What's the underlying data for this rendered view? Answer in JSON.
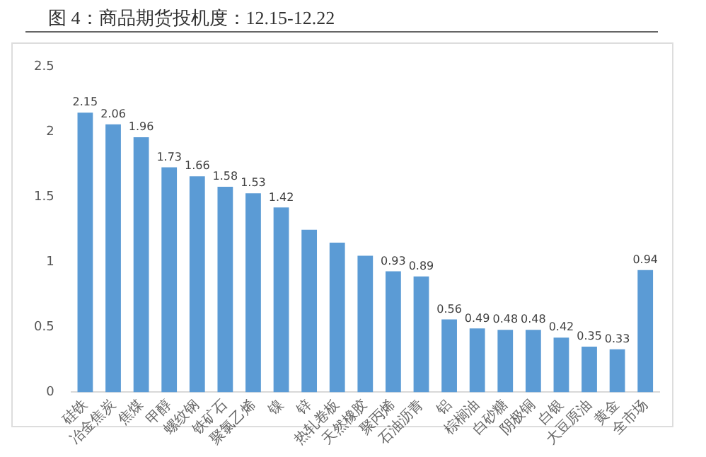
{
  "chart_data": {
    "type": "bar",
    "title": "图 4：商品期货投机度：12.15-12.22",
    "categories": [
      "硅铁",
      "冶金焦炭",
      "焦煤",
      "甲醇",
      "螺纹钢",
      "铁矿石",
      "聚氯乙烯",
      "镍",
      "锌",
      "热轧卷板",
      "天然橡胶",
      "聚丙烯",
      "石油沥青",
      "铝",
      "棕榈油",
      "白砂糖",
      "阴极铜",
      "白银",
      "大豆原油",
      "黄金",
      "全市场"
    ],
    "values": [
      2.15,
      2.06,
      1.96,
      1.73,
      1.66,
      1.58,
      1.53,
      1.42,
      1.25,
      1.15,
      1.05,
      0.93,
      0.89,
      0.56,
      0.49,
      0.48,
      0.48,
      0.42,
      0.35,
      0.33,
      0.94
    ],
    "value_labels": [
      "2.15",
      "2.06",
      "1.96",
      "1.73",
      "1.66",
      "1.58",
      "1.53",
      "1.42",
      null,
      null,
      null,
      "0.93",
      "0.89",
      "0.56",
      "0.49",
      "0.48",
      "0.48",
      "0.42",
      "0.35",
      "0.33",
      "0.94"
    ],
    "color": "#5b9bd5",
    "ylim": [
      0,
      2.5
    ],
    "yticks": [
      0,
      0.5,
      1,
      1.5,
      2,
      2.5
    ],
    "grid": false,
    "legend": false
  }
}
